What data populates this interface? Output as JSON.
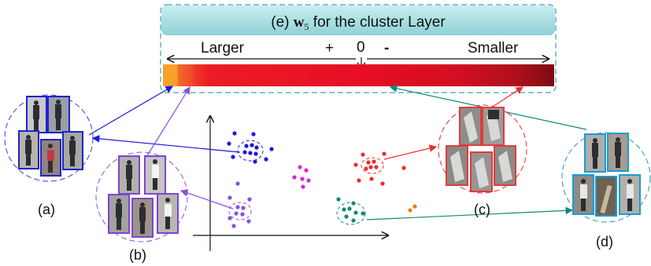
{
  "title": {
    "prefix": "(e) ",
    "symbol": "w",
    "subscript": "5",
    "suffix": " for the cluster Layer"
  },
  "scale": {
    "larger": "Larger",
    "plus": "+",
    "zero": "0",
    "minus": "-",
    "smaller": "Smaller"
  },
  "panel_labels": {
    "a": "(a)",
    "b": "(b)",
    "c": "(c)",
    "d": "(d)"
  },
  "colors": {
    "cluster_a": "#1a1adb",
    "cluster_b": "#8a4fe0",
    "cluster_magenta": "#e020e0",
    "cluster_c": "#ee2b2b",
    "cluster_d": "#0f8a7a",
    "cluster_orange": "#f07a1a",
    "header_fill": "#a8dde0",
    "dashed_border": "#5fb4c4"
  },
  "weight_bar": {
    "description_colors": [
      "#f7a12a",
      "#f26a2a",
      "#ee3b2a",
      "#ea1c25",
      "#e50f24",
      "#dd0d22",
      "#c9101f",
      "#b0101c",
      "#8f0c15"
    ]
  }
}
